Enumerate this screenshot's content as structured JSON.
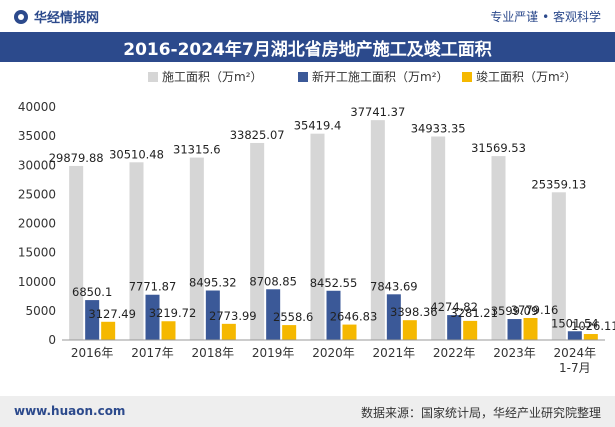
{
  "header": {
    "brand": "华经情报网",
    "slogan": "专业严谨 • 客观科学"
  },
  "footer": {
    "website": "www.huaon.com",
    "source": "数据来源：国家统计局，华经产业研究院整理"
  },
  "chart_data": {
    "type": "bar",
    "title": "2016-2024年7月湖北省房地产施工及竣工面积",
    "categories": [
      "2016年",
      "2017年",
      "2018年",
      "2019年",
      "2020年",
      "2021年",
      "2022年",
      "2023年",
      "2024年\n1-7月"
    ],
    "series": [
      {
        "name": "施工面积（万m²）",
        "color": "#d6d6d6",
        "values": [
          29879.88,
          30510.48,
          31315.6,
          33825.07,
          35419.4,
          37741.37,
          34933.35,
          31569.53,
          25359.13
        ],
        "labels": [
          "29879.88",
          "30510.48",
          "31315.6",
          "33825.07",
          "35419.4",
          "37741.37",
          "34933.35",
          "31569.53",
          "25359.13"
        ]
      },
      {
        "name": "新开工施工面积（万m²）",
        "color": "#3b5998",
        "values": [
          6850.1,
          7771.87,
          8495.32,
          8708.85,
          8452.55,
          7843.69,
          4274.82,
          3599.09,
          1501.54
        ],
        "labels": [
          "6850.1",
          "7771.87",
          "8495.32",
          "8708.85",
          "8452.55",
          "7843.69",
          "4274.82",
          "3599.09",
          "1501.54"
        ]
      },
      {
        "name": "竣工面积（万m²）",
        "color": "#f5b800",
        "values": [
          3127.49,
          3219.72,
          2773.99,
          2558.6,
          2646.83,
          3398.36,
          3281.21,
          3779.16,
          1026.11
        ],
        "labels": [
          "3127.49",
          "3219.72",
          "2773.99",
          "2558.6",
          "2646.83",
          "3398.36",
          "3281.21",
          "3779.16",
          "1026.11"
        ]
      }
    ],
    "ylim": [
      0,
      40000
    ],
    "yticks": [
      "0",
      "5000",
      "10000",
      "15000",
      "20000",
      "25000",
      "30000",
      "35000",
      "40000"
    ],
    "grid": false,
    "legend_position": "top"
  }
}
